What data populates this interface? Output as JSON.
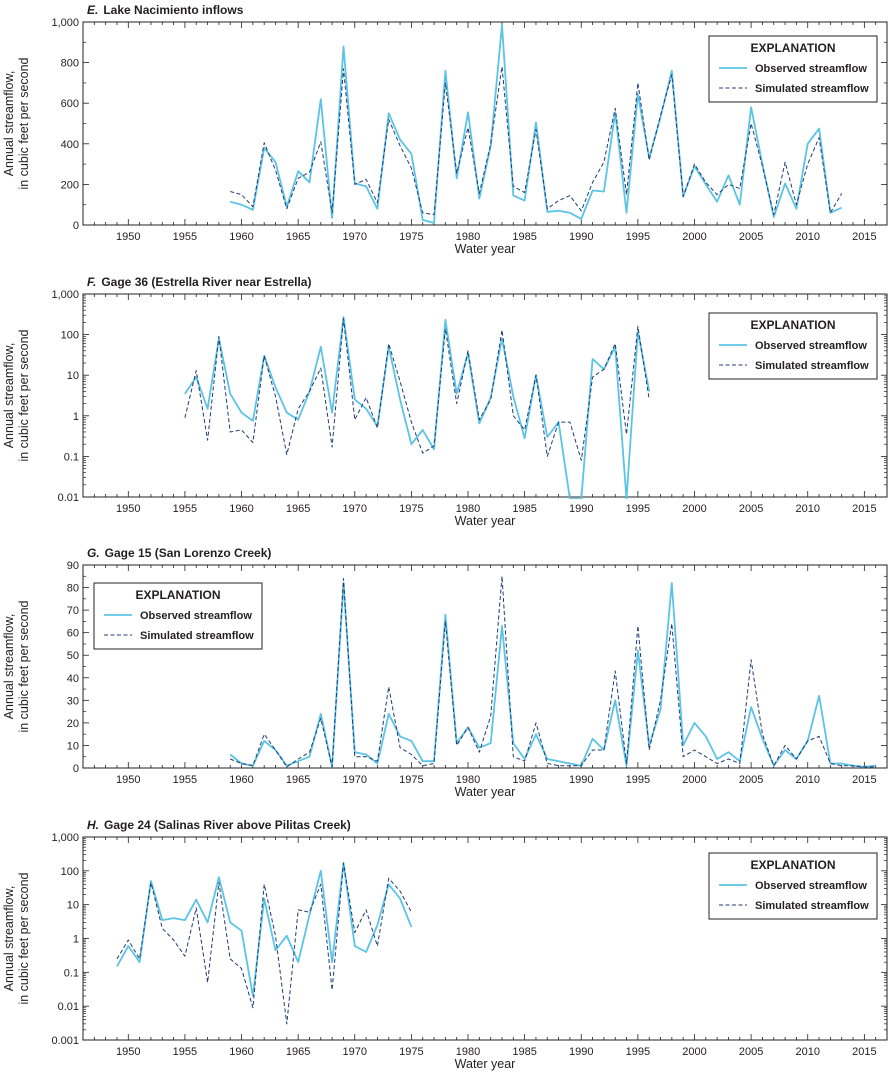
{
  "colors": {
    "observed": "#5bc4e6",
    "simulated": "#1f3b73",
    "axis": "#231f20"
  },
  "chart_data": [
    {
      "type": "line",
      "letter": "E.",
      "title": "Lake Nacimiento inflows",
      "xlabel": "Water year",
      "ylabel_line1": "Annual streamflow,",
      "ylabel_line2": "in cubic feet per second",
      "scale": "linear",
      "xlim": [
        1946,
        2017
      ],
      "ylim": [
        0,
        1000
      ],
      "xticks": [
        "1950",
        "1955",
        "1960",
        "1965",
        "1970",
        "1975",
        "1980",
        "1985",
        "1990",
        "1995",
        "2000",
        "2005",
        "2010",
        "2015"
      ],
      "yticks": [
        "0",
        "200",
        "400",
        "600",
        "800",
        "1,000"
      ],
      "ytick_values": [
        0,
        200,
        400,
        600,
        800,
        1000
      ],
      "legend": {
        "title": "EXPLANATION",
        "observed": "Observed streamflow",
        "simulated": "Simulated streamflow",
        "position": "top-right"
      },
      "x": [
        1959,
        1960,
        1961,
        1962,
        1963,
        1964,
        1965,
        1966,
        1967,
        1968,
        1969,
        1970,
        1971,
        1972,
        1973,
        1974,
        1975,
        1976,
        1977,
        1978,
        1979,
        1980,
        1981,
        1982,
        1983,
        1984,
        1985,
        1986,
        1987,
        1988,
        1989,
        1990,
        1991,
        1992,
        1993,
        1994,
        1995,
        1996,
        1997,
        1998,
        1999,
        2000,
        2001,
        2002,
        2003,
        2004,
        2005,
        2006,
        2007,
        2008,
        2009,
        2010,
        2011,
        2012,
        2013
      ],
      "series": [
        {
          "name": "Observed streamflow",
          "values": [
            115,
            100,
            75,
            380,
            310,
            90,
            265,
            210,
            620,
            35,
            880,
            205,
            190,
            80,
            550,
            420,
            350,
            25,
            10,
            760,
            230,
            555,
            130,
            390,
            985,
            145,
            120,
            505,
            65,
            70,
            60,
            30,
            170,
            165,
            555,
            60,
            645,
            330,
            530,
            760,
            140,
            290,
            200,
            115,
            245,
            100,
            580,
            300,
            40,
            205,
            80,
            400,
            475,
            60,
            85
          ]
        },
        {
          "name": "Simulated streamflow",
          "values": [
            165,
            150,
            90,
            405,
            270,
            80,
            230,
            260,
            410,
            60,
            770,
            200,
            225,
            110,
            520,
            390,
            280,
            60,
            50,
            700,
            255,
            480,
            155,
            400,
            780,
            190,
            160,
            470,
            80,
            120,
            145,
            70,
            210,
            310,
            575,
            150,
            700,
            320,
            540,
            740,
            140,
            300,
            210,
            150,
            200,
            180,
            500,
            290,
            50,
            310,
            100,
            300,
            430,
            60,
            155
          ]
        }
      ]
    },
    {
      "type": "line",
      "letter": "F.",
      "title": "Gage 36 (Estrella River near Estrella)",
      "xlabel": "Water year",
      "ylabel_line1": "Annual streamflow,",
      "ylabel_line2": "in cubic feet per second",
      "scale": "log",
      "xlim": [
        1946,
        2017
      ],
      "ylim": [
        0.01,
        1000
      ],
      "xticks": [
        "1950",
        "1955",
        "1960",
        "1965",
        "1970",
        "1975",
        "1980",
        "1985",
        "1990",
        "1995",
        "2000",
        "2005",
        "2010",
        "2015"
      ],
      "yticks": [
        "0.01",
        "0.1",
        "1",
        "10",
        "100",
        "1,000"
      ],
      "ytick_values": [
        0.01,
        0.1,
        1,
        10,
        100,
        1000
      ],
      "legend": {
        "title": "EXPLANATION",
        "observed": "Observed streamflow",
        "simulated": "Simulated streamflow",
        "position": "top-right"
      },
      "x": [
        1955,
        1956,
        1957,
        1958,
        1959,
        1960,
        1961,
        1962,
        1963,
        1964,
        1965,
        1966,
        1967,
        1968,
        1969,
        1970,
        1971,
        1972,
        1973,
        1974,
        1975,
        1976,
        1977,
        1978,
        1979,
        1980,
        1981,
        1982,
        1983,
        1984,
        1985,
        1986,
        1987,
        1988,
        1989,
        1990,
        1991,
        1992,
        1993,
        1994,
        1995,
        1996
      ],
      "series": [
        {
          "name": "Observed streamflow",
          "values": [
            3.5,
            9,
            1.5,
            80,
            3.5,
            1.2,
            0.75,
            30,
            5,
            1.2,
            0.8,
            4,
            50,
            1.2,
            270,
            2.5,
            1.5,
            0.55,
            50,
            2.5,
            0.2,
            0.45,
            0.15,
            230,
            3.5,
            35,
            0.65,
            2.8,
            80,
            3,
            0.28,
            10,
            0.3,
            0.7,
            0.005,
            0.005,
            25,
            14,
            50,
            0.005,
            120,
            4
          ]
        },
        {
          "name": "Simulated streamflow",
          "values": [
            0.9,
            13,
            0.25,
            90,
            0.4,
            0.45,
            0.22,
            30,
            3,
            0.11,
            1.5,
            4,
            15,
            0.17,
            250,
            0.8,
            2.8,
            0.5,
            60,
            7,
            0.7,
            0.12,
            0.18,
            140,
            2,
            40,
            0.8,
            2.5,
            130,
            1,
            0.45,
            10,
            0.1,
            0.7,
            0.7,
            0.08,
            9,
            14,
            60,
            0.35,
            160,
            2.5
          ]
        }
      ]
    },
    {
      "type": "line",
      "letter": "G.",
      "title": "Gage 15 (San Lorenzo Creek)",
      "xlabel": "Water year",
      "ylabel_line1": "Annual streamflow,",
      "ylabel_line2": "in cubic feet per second",
      "scale": "linear",
      "xlim": [
        1946,
        2017
      ],
      "ylim": [
        0,
        90
      ],
      "xticks": [
        "1950",
        "1955",
        "1960",
        "1965",
        "1970",
        "1975",
        "1980",
        "1985",
        "1990",
        "1995",
        "2000",
        "2005",
        "2010",
        "2015"
      ],
      "yticks": [
        "0",
        "10",
        "20",
        "30",
        "40",
        "50",
        "60",
        "70",
        "80",
        "90"
      ],
      "ytick_values": [
        0,
        10,
        20,
        30,
        40,
        50,
        60,
        70,
        80,
        90
      ],
      "legend": {
        "title": "EXPLANATION",
        "observed": "Observed streamflow",
        "simulated": "Simulated streamflow",
        "position": "top-left"
      },
      "x": [
        1959,
        1960,
        1961,
        1962,
        1963,
        1964,
        1965,
        1966,
        1967,
        1968,
        1969,
        1970,
        1971,
        1972,
        1973,
        1974,
        1975,
        1976,
        1977,
        1978,
        1979,
        1980,
        1981,
        1982,
        1983,
        1984,
        1985,
        1986,
        1987,
        1988,
        1989,
        1990,
        1991,
        1992,
        1993,
        1994,
        1995,
        1996,
        1997,
        1998,
        1999,
        2000,
        2001,
        2002,
        2003,
        2004,
        2005,
        2006,
        2007,
        2008,
        2009,
        2010,
        2011,
        2012,
        2013,
        2014,
        2015,
        2016
      ],
      "series": [
        {
          "name": "Observed streamflow",
          "values": [
            6,
            2,
            1,
            12,
            8,
            1,
            3,
            5,
            24,
            0.5,
            82,
            7,
            6,
            2,
            24,
            14,
            12,
            3,
            3,
            68,
            11,
            18,
            9,
            11,
            63,
            11,
            4,
            15,
            4,
            3,
            2,
            1,
            13,
            8,
            30,
            1,
            52,
            10,
            26,
            82,
            10,
            20,
            14,
            4,
            7,
            3,
            27,
            13,
            1,
            8,
            4,
            12,
            32,
            2,
            2,
            1,
            0.5,
            1
          ]
        },
        {
          "name": "Simulated streamflow",
          "values": [
            4,
            2,
            1,
            15,
            8,
            0.5,
            4,
            7,
            22,
            0.5,
            84,
            5,
            5,
            3,
            36,
            9,
            6,
            1,
            2,
            65,
            10,
            18,
            7,
            23,
            85,
            5,
            3,
            20,
            2,
            1,
            1,
            1,
            8,
            8,
            43,
            2,
            63,
            8,
            30,
            64,
            5,
            8,
            5,
            2,
            4,
            2,
            48,
            15,
            1,
            10,
            4,
            12,
            14,
            2,
            1,
            1,
            0.5,
            0.5
          ]
        }
      ]
    },
    {
      "type": "line",
      "letter": "H.",
      "title": "Gage 24 (Salinas River above Pilitas Creek)",
      "xlabel": "Water year",
      "ylabel_line1": "Annual streamflow,",
      "ylabel_line2": "in cubic feet per second",
      "scale": "log",
      "xlim": [
        1946,
        2017
      ],
      "ylim": [
        0.001,
        1000
      ],
      "xticks": [
        "1950",
        "1955",
        "1960",
        "1965",
        "1970",
        "1975",
        "1980",
        "1985",
        "1990",
        "1995",
        "2000",
        "2005",
        "2010",
        "2015"
      ],
      "yticks": [
        "0.001",
        "0.01",
        "0.1",
        "1",
        "10",
        "100",
        "1,000"
      ],
      "ytick_values": [
        0.001,
        0.01,
        0.1,
        1,
        10,
        100,
        1000
      ],
      "legend": {
        "title": "EXPLANATION",
        "observed": "Observed streamflow",
        "simulated": "Simulated streamflow",
        "position": "top-right"
      },
      "x": [
        1949,
        1950,
        1951,
        1952,
        1953,
        1954,
        1955,
        1956,
        1957,
        1958,
        1959,
        1960,
        1961,
        1962,
        1963,
        1964,
        1965,
        1966,
        1967,
        1968,
        1969,
        1970,
        1971,
        1972,
        1973,
        1974,
        1975
      ],
      "series": [
        {
          "name": "Observed streamflow",
          "values": [
            0.15,
            0.6,
            0.2,
            50,
            3.5,
            4,
            3.5,
            14,
            3,
            65,
            3,
            1.7,
            0.02,
            15,
            0.45,
            1.2,
            0.2,
            5,
            100,
            0.2,
            170,
            0.6,
            0.4,
            2.5,
            40,
            15,
            2.2
          ]
        },
        {
          "name": "Simulated streamflow",
          "values": [
            0.25,
            0.9,
            0.25,
            45,
            2,
            0.9,
            0.3,
            8,
            0.05,
            45,
            0.25,
            0.13,
            0.009,
            40,
            1.2,
            0.003,
            7,
            6,
            40,
            0.03,
            170,
            1.5,
            7,
            0.6,
            60,
            25,
            6
          ]
        }
      ]
    }
  ]
}
